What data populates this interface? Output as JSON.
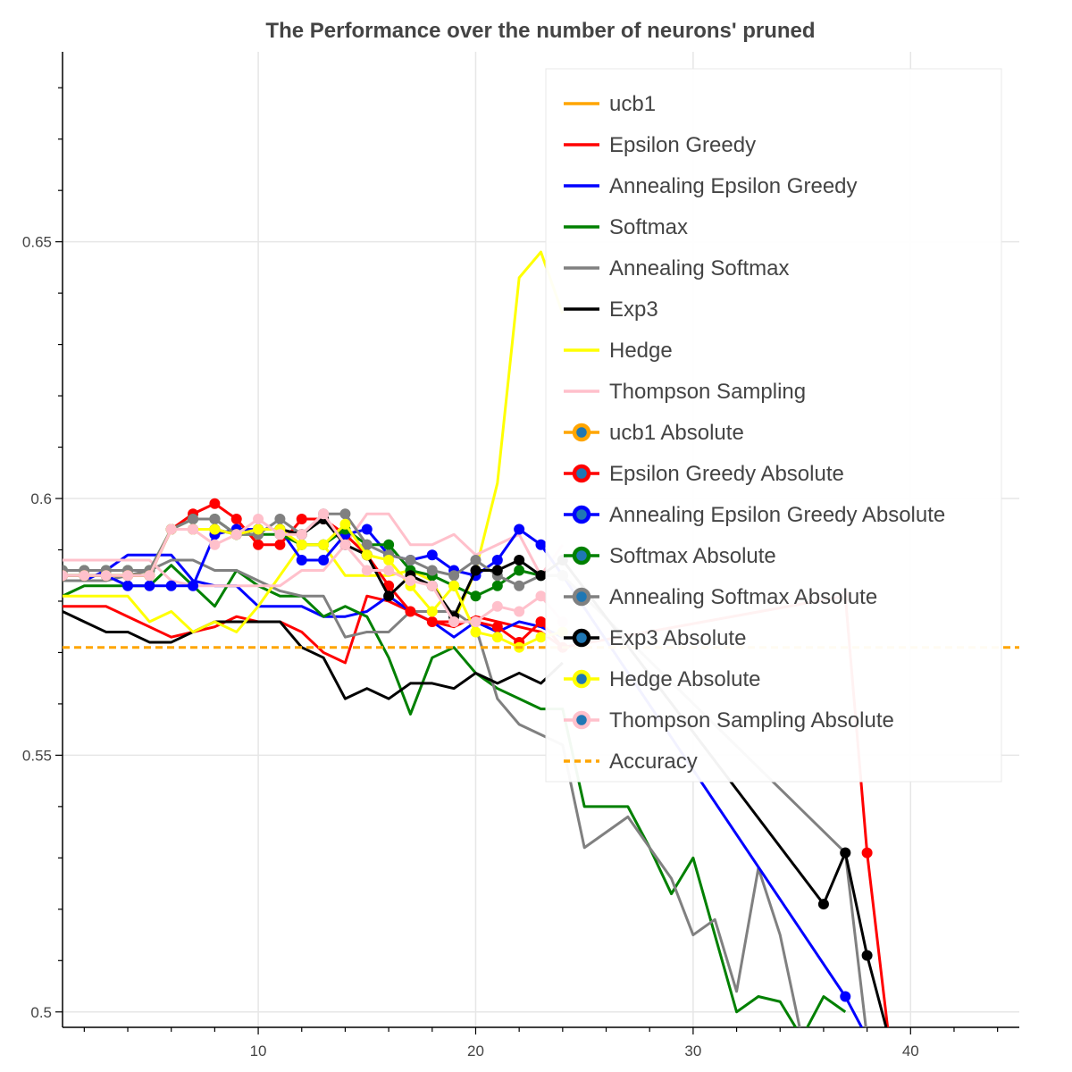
{
  "chart_data": {
    "type": "line",
    "title": "The Performance over the number of neurons' pruned",
    "xlabel": "",
    "ylabel": "",
    "xlim": [
      1.0,
      45.0
    ],
    "ylim": [
      0.497,
      0.687
    ],
    "x_ticks": [
      10,
      20,
      30,
      40
    ],
    "y_ticks": [
      0.5,
      0.55,
      0.6,
      0.65
    ],
    "y_tick_labels": [
      "0.5",
      "0.55",
      "0.6",
      "0.65"
    ],
    "grid": true,
    "legend_position": "top-right",
    "series": [
      {
        "name": "ucb1",
        "color": "#ffa500",
        "dash": false,
        "markers": false,
        "x": [],
        "y": []
      },
      {
        "name": "Epsilon Greedy",
        "color": "#ff0000",
        "dash": false,
        "markers": false,
        "x": [
          1,
          2,
          3,
          4,
          5,
          6,
          7,
          8,
          9,
          10,
          11,
          12,
          13,
          14,
          15,
          16,
          17,
          18,
          19,
          20,
          21,
          22,
          23,
          24
        ],
        "y": [
          0.579,
          0.579,
          0.579,
          0.577,
          0.575,
          0.573,
          0.574,
          0.575,
          0.577,
          0.576,
          0.576,
          0.574,
          0.57,
          0.568,
          0.581,
          0.58,
          0.578,
          0.576,
          0.575,
          0.577,
          0.576,
          0.575,
          0.574,
          0.571
        ]
      },
      {
        "name": "Annealing Epsilon Greedy",
        "color": "#0000ff",
        "dash": false,
        "markers": false,
        "x": [
          1,
          2,
          3,
          4,
          5,
          6,
          7,
          8,
          9,
          10,
          11,
          12,
          13,
          14,
          15,
          16,
          17,
          18,
          19,
          20,
          21,
          22,
          23,
          24
        ],
        "y": [
          0.584,
          0.584,
          0.586,
          0.589,
          0.589,
          0.589,
          0.584,
          0.583,
          0.583,
          0.579,
          0.579,
          0.579,
          0.577,
          0.577,
          0.578,
          0.581,
          0.578,
          0.576,
          0.573,
          0.576,
          0.574,
          0.576,
          0.575,
          0.573
        ]
      },
      {
        "name": "Softmax",
        "color": "#008000",
        "dash": false,
        "markers": false,
        "x": [
          1,
          2,
          3,
          4,
          5,
          6,
          7,
          8,
          9,
          10,
          11,
          12,
          13,
          14,
          15,
          16,
          17,
          18,
          19,
          20,
          21,
          22,
          23,
          24,
          25,
          26,
          27,
          28,
          29,
          30,
          31,
          32,
          33,
          34,
          35,
          36,
          37
        ],
        "y": [
          0.581,
          0.583,
          0.583,
          0.583,
          0.583,
          0.587,
          0.583,
          0.579,
          0.586,
          0.583,
          0.581,
          0.581,
          0.577,
          0.579,
          0.577,
          0.569,
          0.558,
          0.569,
          0.571,
          0.566,
          0.563,
          0.561,
          0.559,
          0.559,
          0.54,
          0.54,
          0.54,
          0.532,
          0.523,
          0.53,
          0.515,
          0.5,
          0.503,
          0.502,
          0.495,
          0.503,
          0.5
        ]
      },
      {
        "name": "Annealing Softmax",
        "color": "#808080",
        "dash": false,
        "markers": false,
        "x": [
          1,
          2,
          3,
          4,
          5,
          6,
          7,
          8,
          9,
          10,
          11,
          12,
          13,
          14,
          15,
          16,
          17,
          18,
          19,
          20,
          21,
          22,
          23,
          24,
          25,
          26,
          27,
          28,
          29,
          30,
          31,
          32,
          33,
          34,
          35
        ],
        "y": [
          0.584,
          0.584,
          0.584,
          0.585,
          0.586,
          0.588,
          0.588,
          0.586,
          0.586,
          0.584,
          0.582,
          0.581,
          0.581,
          0.573,
          0.574,
          0.574,
          0.578,
          0.578,
          0.578,
          0.575,
          0.561,
          0.556,
          0.554,
          0.552,
          0.532,
          0.535,
          0.538,
          0.532,
          0.526,
          0.515,
          0.518,
          0.504,
          0.528,
          0.515,
          0.495
        ]
      },
      {
        "name": "Exp3",
        "color": "#000000",
        "dash": false,
        "markers": false,
        "x": [
          1,
          2,
          3,
          4,
          5,
          6,
          7,
          8,
          9,
          10,
          11,
          12,
          13,
          14,
          15,
          16,
          17,
          18,
          19,
          20,
          21,
          22,
          23,
          24
        ],
        "y": [
          0.578,
          0.576,
          0.574,
          0.574,
          0.572,
          0.572,
          0.574,
          0.576,
          0.576,
          0.576,
          0.576,
          0.571,
          0.569,
          0.561,
          0.563,
          0.561,
          0.564,
          0.564,
          0.563,
          0.566,
          0.564,
          0.566,
          0.564,
          0.568
        ]
      },
      {
        "name": "Hedge",
        "color": "#ffff00",
        "dash": false,
        "markers": false,
        "x": [
          1,
          2,
          3,
          4,
          5,
          6,
          7,
          8,
          9,
          10,
          11,
          12,
          13,
          14,
          15,
          16,
          17,
          18,
          19,
          20,
          21,
          22,
          23,
          24
        ],
        "y": [
          0.581,
          0.581,
          0.581,
          0.581,
          0.576,
          0.578,
          0.574,
          0.576,
          0.574,
          0.579,
          0.585,
          0.591,
          0.591,
          0.585,
          0.585,
          0.585,
          0.586,
          0.584,
          0.576,
          0.586,
          0.603,
          0.643,
          0.648,
          0.636
        ]
      },
      {
        "name": "Thompson Sampling",
        "color": "#ffc0cb",
        "dash": false,
        "markers": false,
        "x": [
          1,
          2,
          3,
          4,
          5,
          6,
          7,
          8,
          9,
          10,
          11,
          12,
          13,
          14,
          15,
          16,
          17,
          18,
          19,
          20,
          21,
          22,
          23,
          24
        ],
        "y": [
          0.588,
          0.588,
          0.588,
          0.588,
          0.588,
          0.584,
          0.583,
          0.583,
          0.583,
          0.583,
          0.583,
          0.586,
          0.586,
          0.591,
          0.597,
          0.597,
          0.591,
          0.591,
          0.593,
          0.589,
          0.591,
          0.593,
          0.585,
          0.591
        ]
      },
      {
        "name": "ucb1 Absolute",
        "color": "#ffa500",
        "dash": false,
        "markers": true,
        "x": [],
        "y": []
      },
      {
        "name": "Epsilon Greedy Absolute",
        "color": "#ff0000",
        "dash": false,
        "markers": true,
        "x": [
          1,
          2,
          3,
          4,
          5,
          6,
          7,
          8,
          9,
          10,
          11,
          12,
          13,
          14,
          15,
          16,
          17,
          18,
          19,
          20,
          21,
          22,
          23,
          24,
          37,
          38,
          39
        ],
        "y": [
          0.585,
          0.585,
          0.585,
          0.585,
          0.585,
          0.594,
          0.597,
          0.599,
          0.596,
          0.591,
          0.591,
          0.596,
          0.596,
          0.593,
          0.589,
          0.583,
          0.578,
          0.576,
          0.576,
          0.576,
          0.575,
          0.572,
          0.576,
          0.571,
          0.581,
          0.531,
          0.495
        ]
      },
      {
        "name": "Annealing Epsilon Greedy Absolute",
        "color": "#0000ff",
        "dash": false,
        "markers": true,
        "x": [
          1,
          2,
          3,
          4,
          5,
          6,
          7,
          8,
          9,
          10,
          11,
          12,
          13,
          14,
          15,
          16,
          17,
          18,
          19,
          20,
          21,
          22,
          23,
          24,
          37,
          38
        ],
        "y": [
          0.585,
          0.585,
          0.585,
          0.583,
          0.583,
          0.583,
          0.583,
          0.593,
          0.594,
          0.594,
          0.594,
          0.588,
          0.588,
          0.593,
          0.594,
          0.589,
          0.588,
          0.589,
          0.586,
          0.585,
          0.588,
          0.594,
          0.591,
          0.585,
          0.503,
          0.495
        ]
      },
      {
        "name": "Softmax Absolute",
        "color": "#008000",
        "dash": false,
        "markers": true,
        "x": [
          1,
          2,
          3,
          4,
          5,
          6,
          7,
          8,
          9,
          10,
          11,
          12,
          13,
          14,
          15,
          16,
          17,
          18,
          19,
          20,
          21,
          22,
          23,
          24
        ],
        "y": [
          0.586,
          0.586,
          0.586,
          0.586,
          0.586,
          0.594,
          0.596,
          0.596,
          0.593,
          0.593,
          0.593,
          0.591,
          0.591,
          0.594,
          0.591,
          0.591,
          0.586,
          0.585,
          0.583,
          0.581,
          0.583,
          0.586,
          0.585,
          0.585
        ]
      },
      {
        "name": "Annealing Softmax Absolute",
        "color": "#808080",
        "dash": false,
        "markers": true,
        "x": [
          1,
          2,
          3,
          4,
          5,
          6,
          7,
          8,
          9,
          10,
          11,
          12,
          13,
          14,
          15,
          16,
          17,
          18,
          19,
          20,
          21,
          22,
          23,
          24,
          37,
          38
        ],
        "y": [
          0.586,
          0.586,
          0.586,
          0.586,
          0.586,
          0.594,
          0.596,
          0.596,
          0.593,
          0.593,
          0.596,
          0.593,
          0.597,
          0.597,
          0.591,
          0.589,
          0.588,
          0.586,
          0.585,
          0.588,
          0.585,
          0.583,
          0.585,
          0.585,
          0.531,
          0.495
        ]
      },
      {
        "name": "Exp3 Absolute",
        "color": "#000000",
        "dash": false,
        "markers": true,
        "x": [
          1,
          2,
          3,
          4,
          5,
          6,
          7,
          8,
          9,
          10,
          11,
          12,
          13,
          14,
          15,
          16,
          17,
          18,
          19,
          20,
          21,
          22,
          23,
          24,
          36,
          37,
          38,
          39
        ],
        "y": [
          0.585,
          0.585,
          0.585,
          0.585,
          0.585,
          0.594,
          0.594,
          0.594,
          0.593,
          0.594,
          0.594,
          0.593,
          0.596,
          0.591,
          0.589,
          0.581,
          0.585,
          0.583,
          0.577,
          0.586,
          0.586,
          0.588,
          0.585,
          0.588,
          0.521,
          0.531,
          0.511,
          0.495
        ]
      },
      {
        "name": "Hedge Absolute",
        "color": "#ffff00",
        "dash": false,
        "markers": true,
        "x": [
          1,
          2,
          3,
          4,
          5,
          6,
          7,
          8,
          9,
          10,
          11,
          12,
          13,
          14,
          15,
          16,
          17,
          18,
          19,
          20,
          21,
          22,
          23,
          24
        ],
        "y": [
          0.585,
          0.585,
          0.585,
          0.585,
          0.585,
          0.594,
          0.594,
          0.594,
          0.593,
          0.594,
          0.594,
          0.591,
          0.591,
          0.595,
          0.589,
          0.588,
          0.583,
          0.578,
          0.583,
          0.574,
          0.573,
          0.571,
          0.573,
          0.574
        ]
      },
      {
        "name": "Thompson Sampling Absolute",
        "color": "#ffc0cb",
        "dash": false,
        "markers": true,
        "x": [
          1,
          2,
          3,
          4,
          5,
          6,
          7,
          8,
          9,
          10,
          11,
          12,
          13,
          14,
          15,
          16,
          17,
          18,
          19,
          20,
          21,
          22,
          23,
          24
        ],
        "y": [
          0.585,
          0.585,
          0.585,
          0.585,
          0.585,
          0.594,
          0.594,
          0.591,
          0.593,
          0.596,
          0.593,
          0.593,
          0.597,
          0.591,
          0.586,
          0.586,
          0.584,
          0.583,
          0.576,
          0.576,
          0.579,
          0.578,
          0.581,
          0.576
        ]
      },
      {
        "name": "Accuracy",
        "color": "#ffa500",
        "dash": true,
        "markers": false,
        "x": [
          1,
          45
        ],
        "y": [
          0.571,
          0.571
        ]
      }
    ]
  }
}
